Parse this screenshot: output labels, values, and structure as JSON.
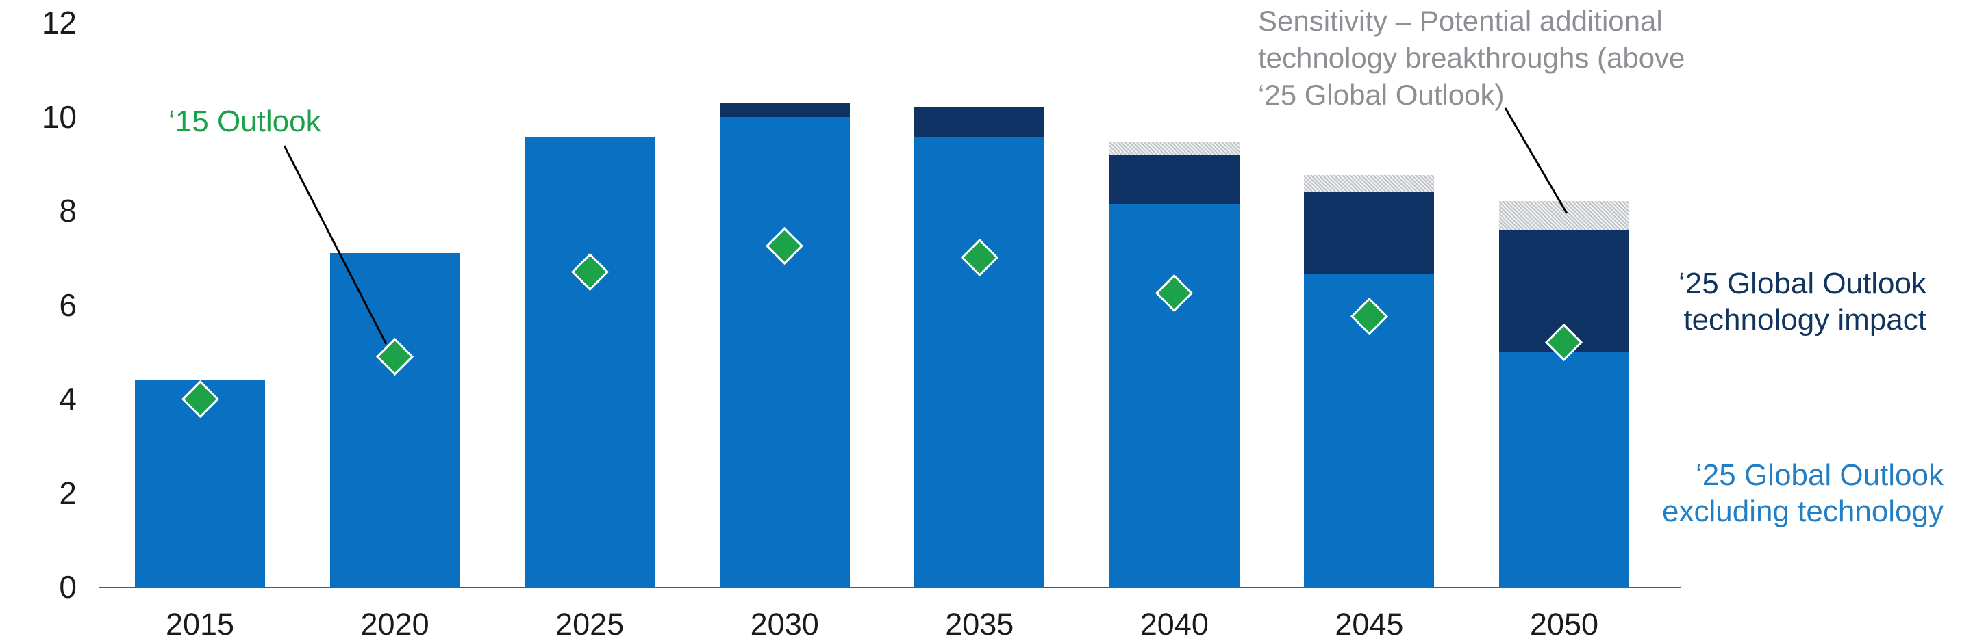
{
  "chart_data": {
    "type": "bar",
    "stacked": true,
    "title": "",
    "xlabel": "",
    "ylabel": "",
    "categories": [
      "2015",
      "2020",
      "2025",
      "2030",
      "2035",
      "2040",
      "2045",
      "2050"
    ],
    "series": [
      {
        "key": "excluding-technology",
        "name": "‘25 Global Outlook excluding technology",
        "role": "bar",
        "color": "#0a70c2",
        "values": [
          4.4,
          7.1,
          9.55,
          10.0,
          9.55,
          8.15,
          6.65,
          5.0
        ]
      },
      {
        "key": "technology-impact",
        "name": "‘25 Global Outlook technology impact",
        "role": "bar",
        "color": "#0d3263",
        "values": [
          0,
          0,
          0,
          0.3,
          0.65,
          1.05,
          1.75,
          2.6
        ]
      },
      {
        "key": "sensitivity",
        "name": "Sensitivity – Potential additional technology breakthroughs (above ‘25 Global Outlook)",
        "role": "bar",
        "pattern": "diagonal-hatch",
        "color": "#bfc3c7",
        "values": [
          0,
          0,
          0,
          0,
          0,
          0.25,
          0.35,
          0.6
        ]
      },
      {
        "key": "outlook-15",
        "name": "‘15 Outlook",
        "role": "scatter",
        "marker": "diamond",
        "color": "#1da149",
        "values": [
          4.0,
          4.9,
          6.7,
          7.25,
          7.0,
          6.25,
          5.75,
          5.2
        ]
      }
    ],
    "ylim": [
      0,
      12
    ],
    "yticks": [
      0,
      2,
      4,
      6,
      8,
      10,
      12
    ],
    "grid": false,
    "legend_position": "inline-annotations"
  },
  "annotations": {
    "outlook15": {
      "text": "‘15 Outlook",
      "color": "#1ba249"
    },
    "sensitivity": {
      "text": "Sensitivity – Potential additional\ntechnology breakthroughs (above\n‘25 Global Outlook)",
      "color": "#8c8f93"
    },
    "tech_impact": {
      "text": "‘25 Global Outlook\ntechnology impact",
      "color": "#123560"
    },
    "excl_tech": {
      "text": "‘25 Global Outlook\nexcluding technology",
      "color": "#237ec4"
    }
  }
}
